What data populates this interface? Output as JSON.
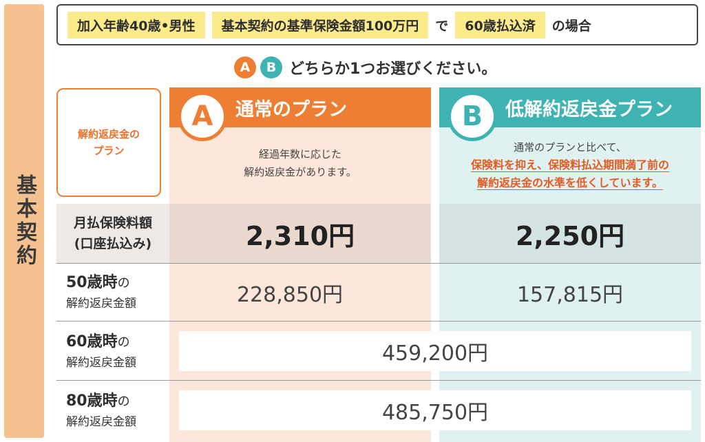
{
  "side_tab": "基本契約",
  "condition": {
    "chip1": "加入年齢40歳•男性",
    "chip2": "基本契約の基準保険金額100万円",
    "connector": "で",
    "chip3": "60歳払込済",
    "suffix": "の場合"
  },
  "choose": {
    "a_badge": "A",
    "b_badge": "B",
    "text": "どちらか1つお選びください。"
  },
  "plan_box": {
    "line1": "解約返戻金の",
    "line2": "プラン"
  },
  "plans": {
    "a": {
      "badge": "A",
      "title": "通常のプラン",
      "desc_line1": "経過年数に応じた",
      "desc_line2": "解約返戻金があります。"
    },
    "b": {
      "badge": "B",
      "title": "低解約返戻金プラン",
      "desc_line1": "通常のプランと比べて、",
      "desc_line2": "保険料を抑え、保険料払込期間満了前の",
      "desc_line3": "解約返戻金の水準を低くしています。"
    }
  },
  "rows": {
    "premium": {
      "label_line1": "月払保険料額",
      "label_line2": "(口座払込み)",
      "a": "2,310円",
      "b": "2,250円"
    },
    "age50": {
      "age": "50歳時",
      "no": "の",
      "sub": "解約返戻金額",
      "a": "228,850円",
      "b": "157,815円"
    },
    "age60": {
      "age": "60歳時",
      "no": "の",
      "sub": "解約返戻金額",
      "value": "459,200円"
    },
    "age80": {
      "age": "80歳時",
      "no": "の",
      "sub": "解約返戻金額",
      "value": "485,750円"
    }
  },
  "colors": {
    "orange": "#ed7e33",
    "teal": "#3fb2b2",
    "chip_yellow": "#fbeb8b",
    "side_tab": "#f5c28f"
  }
}
